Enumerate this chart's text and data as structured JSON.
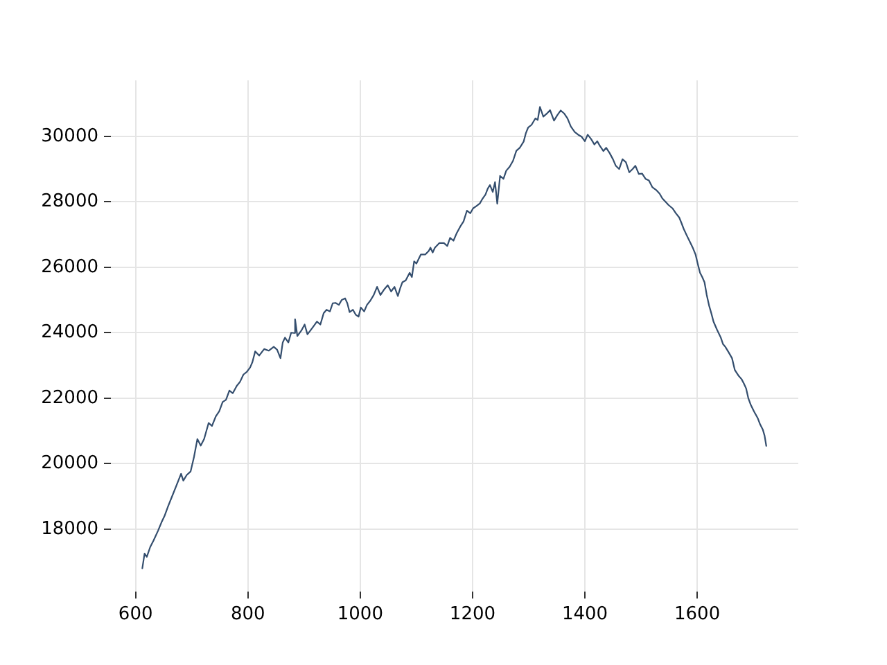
{
  "chart_data": {
    "type": "line",
    "color": "#344e6e",
    "x": [
      612,
      616,
      620,
      626,
      632,
      640,
      646,
      652,
      658,
      665,
      672,
      681,
      685,
      691,
      698,
      704,
      710,
      716,
      722,
      730,
      736,
      743,
      749,
      755,
      761,
      767,
      773,
      780,
      786,
      792,
      798,
      804,
      808,
      813,
      820,
      829,
      837,
      846,
      852,
      858,
      862,
      866,
      872,
      877,
      882,
      884,
      888,
      895,
      901,
      906,
      911,
      917,
      923,
      929,
      935,
      940,
      946,
      951,
      956,
      962,
      967,
      973,
      977,
      981,
      987,
      992,
      997,
      1001,
      1007,
      1012,
      1018,
      1024,
      1030,
      1036,
      1043,
      1049,
      1055,
      1061,
      1067,
      1071,
      1075,
      1081,
      1088,
      1092,
      1096,
      1100,
      1108,
      1116,
      1122,
      1125,
      1129,
      1133,
      1141,
      1149,
      1155,
      1160,
      1166,
      1172,
      1178,
      1184,
      1190,
      1196,
      1201,
      1207,
      1213,
      1218,
      1223,
      1227,
      1231,
      1236,
      1240,
      1244,
      1249,
      1255,
      1260,
      1266,
      1272,
      1278,
      1284,
      1291,
      1295,
      1299,
      1305,
      1312,
      1316,
      1320,
      1326,
      1332,
      1338,
      1345,
      1351,
      1357,
      1363,
      1369,
      1375,
      1382,
      1388,
      1394,
      1400,
      1405,
      1411,
      1417,
      1422,
      1427,
      1433,
      1438,
      1444,
      1450,
      1455,
      1461,
      1467,
      1473,
      1479,
      1485,
      1490,
      1496,
      1502,
      1508,
      1514,
      1520,
      1527,
      1533,
      1538,
      1543,
      1549,
      1556,
      1562,
      1568,
      1572,
      1576,
      1582,
      1588,
      1592,
      1597,
      1601,
      1605,
      1609,
      1613,
      1617,
      1621,
      1625,
      1629,
      1635,
      1642,
      1646,
      1650,
      1656,
      1662,
      1667,
      1673,
      1679,
      1683,
      1687,
      1691,
      1695,
      1701,
      1708,
      1712,
      1717,
      1720,
      1723
    ],
    "values": [
      16800,
      17250,
      17150,
      17450,
      17650,
      17950,
      18200,
      18420,
      18700,
      19000,
      19300,
      19690,
      19480,
      19650,
      19760,
      20200,
      20750,
      20550,
      20750,
      21240,
      21150,
      21450,
      21600,
      21880,
      21950,
      22230,
      22150,
      22370,
      22500,
      22720,
      22800,
      22940,
      23100,
      23430,
      23300,
      23500,
      23450,
      23570,
      23480,
      23220,
      23700,
      23850,
      23700,
      24000,
      23990,
      24410,
      23900,
      24060,
      24250,
      23950,
      24060,
      24200,
      24340,
      24250,
      24600,
      24700,
      24650,
      24900,
      24910,
      24850,
      25000,
      25050,
      24900,
      24630,
      24700,
      24550,
      24490,
      24770,
      24650,
      24850,
      24980,
      25150,
      25400,
      25150,
      25330,
      25450,
      25260,
      25400,
      25120,
      25350,
      25540,
      25600,
      25830,
      25700,
      26180,
      26110,
      26390,
      26390,
      26500,
      26600,
      26450,
      26600,
      26740,
      26740,
      26650,
      26900,
      26810,
      27050,
      27240,
      27400,
      27730,
      27650,
      27800,
      27870,
      27950,
      28100,
      28220,
      28400,
      28510,
      28300,
      28600,
      27940,
      28790,
      28700,
      28950,
      29070,
      29250,
      29560,
      29650,
      29840,
      30100,
      30270,
      30350,
      30550,
      30500,
      30900,
      30600,
      30690,
      30800,
      30480,
      30650,
      30790,
      30700,
      30550,
      30300,
      30130,
      30050,
      29990,
      29850,
      30050,
      29920,
      29750,
      29850,
      29700,
      29550,
      29650,
      29490,
      29300,
      29100,
      29000,
      29300,
      29210,
      28900,
      29000,
      29100,
      28850,
      28860,
      28700,
      28650,
      28450,
      28360,
      28250,
      28100,
      28010,
      27900,
      27800,
      27650,
      27520,
      27350,
      27170,
      26950,
      26740,
      26600,
      26390,
      26100,
      25830,
      25700,
      25540,
      25150,
      24840,
      24600,
      24340,
      24100,
      23850,
      23650,
      23570,
      23400,
      23220,
      22860,
      22700,
      22580,
      22450,
      22300,
      22000,
      21810,
      21600,
      21380,
      21200,
      21030,
      20850,
      20540
    ],
    "xlim": [
      556,
      1780
    ],
    "ylim": [
      16090,
      31710
    ],
    "xticks": [
      600,
      800,
      1000,
      1200,
      1400,
      1600
    ],
    "yticks": [
      18000,
      20000,
      22000,
      24000,
      26000,
      28000,
      30000
    ],
    "grid": true
  }
}
